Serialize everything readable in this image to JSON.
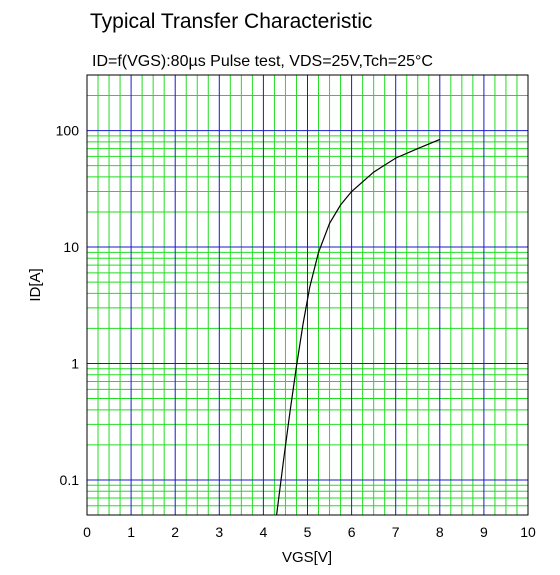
{
  "chart_data": {
    "type": "line",
    "title": "Typical Transfer Characteristic",
    "subtitle": "ID=f(VGS):80µs Pulse test, VDS=25V,Tch=25°C",
    "xlabel": "VGS[V]",
    "ylabel": "ID[A]",
    "xlim": [
      0,
      10
    ],
    "ylim": [
      0.05,
      300
    ],
    "yscale": "log",
    "x_ticks": [
      "0",
      "1",
      "2",
      "3",
      "4",
      "5",
      "6",
      "7",
      "8",
      "9",
      "10"
    ],
    "y_ticks": [
      "0.1",
      "1",
      "10",
      "100"
    ],
    "grid": true,
    "colors": {
      "major_grid": "#1a1acc",
      "minor_grid": "#22dd22",
      "curve": "#000000"
    },
    "series": [
      {
        "x": [
          4.3,
          4.45,
          4.6,
          4.75,
          4.9,
          5.05,
          5.25,
          5.5,
          5.75,
          6.0,
          6.5,
          7.0,
          7.5,
          8.0
        ],
        "y": [
          0.05,
          0.14,
          0.38,
          0.95,
          2.2,
          4.5,
          9.0,
          16.0,
          23.0,
          30.0,
          44.0,
          58.0,
          70.0,
          84.0
        ]
      }
    ]
  }
}
